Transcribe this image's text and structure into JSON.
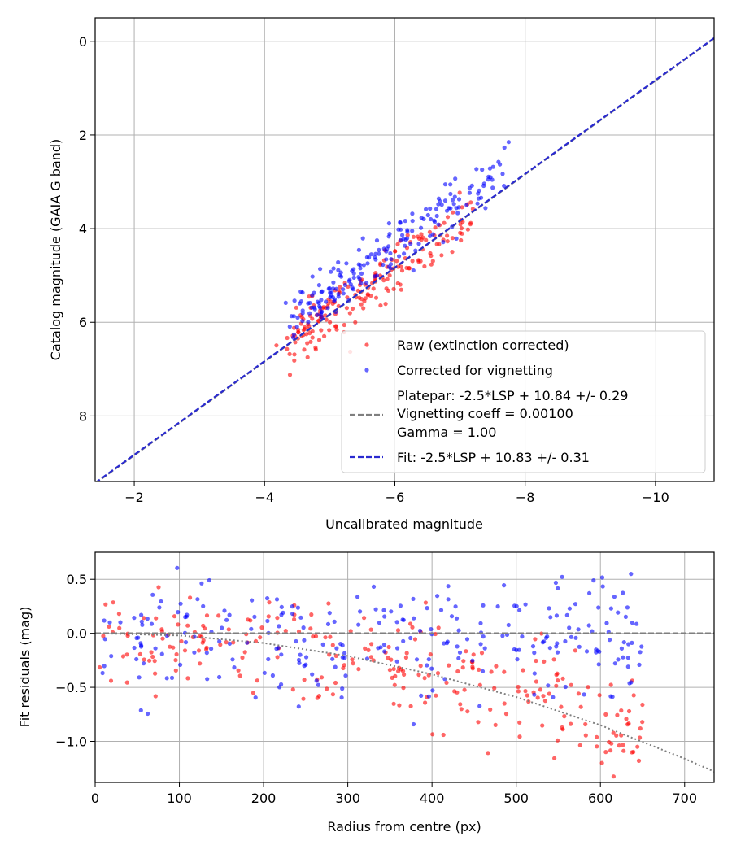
{
  "chart_data": [
    {
      "type": "scatter",
      "xlabel": "Uncalibrated magnitude",
      "ylabel": "Catalog magnitude (GAIA G band)",
      "xlim": [
        -1.4,
        -10.9
      ],
      "ylim": [
        9.4,
        -0.5
      ],
      "x_reversed": true,
      "y_reversed": true,
      "xticks": [
        -2,
        -4,
        -6,
        -8,
        -10
      ],
      "xtick_labels": [
        "−2",
        "−4",
        "−6",
        "−8",
        "−10"
      ],
      "yticks": [
        0,
        2,
        4,
        6,
        8
      ],
      "ytick_labels": [
        "0",
        "2",
        "4",
        "6",
        "8"
      ],
      "grid": true,
      "legend_position": "bottom-right",
      "series": [
        {
          "name": "Raw (extinction corrected)",
          "color": "#ff0000",
          "kind": "scatter",
          "cloud": {
            "n": 200,
            "x_min": -4.5,
            "x_max": -7.1,
            "slope": 1.0,
            "intercept": 10.84,
            "spread": 0.29
          }
        },
        {
          "name": "Corrected for vignetting",
          "color": "#0000ff",
          "kind": "scatter",
          "cloud": {
            "n": 200,
            "x_min": -4.6,
            "x_max": -7.7,
            "slope": 1.0,
            "intercept": 10.38,
            "spread": 0.26
          }
        },
        {
          "name_lines": [
            "Platepar: -2.5*LSP + 10.84 +/- 0.29",
            "Vignetting coeff = 0.00100",
            "Gamma = 1.00"
          ],
          "color": "#7f7f7f",
          "kind": "dashed-line",
          "x": [
            -1.4,
            -10.9
          ],
          "y": [
            9.44,
            -0.06
          ]
        },
        {
          "name": "Fit: -2.5*LSP + 10.83 +/- 0.31",
          "color": "#2a2ad0",
          "kind": "dashed-line",
          "x": [
            -1.4,
            -10.9
          ],
          "y": [
            9.43,
            -0.07
          ]
        }
      ]
    },
    {
      "type": "scatter",
      "xlabel": "Radius from centre (px)",
      "ylabel": "Fit residuals (mag)",
      "xlim": [
        0,
        735
      ],
      "ylim": [
        -1.38,
        0.75
      ],
      "xticks": [
        0,
        100,
        200,
        300,
        400,
        500,
        600,
        700
      ],
      "xtick_labels": [
        "0",
        "100",
        "200",
        "300",
        "400",
        "500",
        "600",
        "700"
      ],
      "yticks": [
        0.5,
        0.0,
        -0.5,
        -1.0
      ],
      "ytick_labels": [
        "0.5",
        "0.0",
        "−0.5",
        "−1.0"
      ],
      "grid": true,
      "series": [
        {
          "color": "#ff0000",
          "kind": "scatter",
          "cloud": {
            "n": 260,
            "r_min": 5,
            "r_max": 650,
            "trend_per_px2": -2.2e-06,
            "spread": 0.25
          }
        },
        {
          "color": "#0000ff",
          "kind": "scatter",
          "cloud": {
            "n": 260,
            "r_min": 5,
            "r_max": 650,
            "trend_per_px2": 0.0,
            "spread": 0.28
          }
        },
        {
          "color": "#7f7f7f",
          "kind": "dashed-line",
          "x": [
            0,
            735
          ],
          "y": [
            0,
            0
          ]
        },
        {
          "color": "#7f7f7f",
          "kind": "dotted-curve",
          "formula": "y = -2.5*log10(1 + 0.001*x)^... approx -0.0000024*x^2",
          "x": [
            0,
            100,
            200,
            300,
            400,
            500,
            600,
            700,
            735
          ],
          "y": [
            0.0,
            -0.02,
            -0.09,
            -0.21,
            -0.38,
            -0.59,
            -0.85,
            -1.16,
            -1.28
          ]
        }
      ]
    }
  ]
}
